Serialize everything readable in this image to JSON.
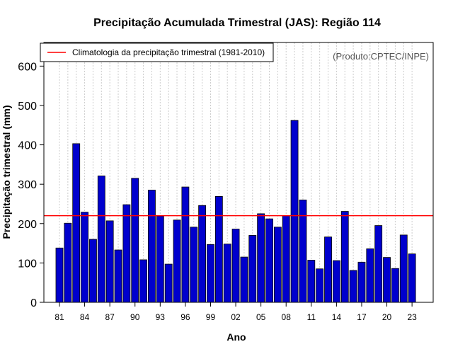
{
  "chart_data": {
    "type": "bar",
    "title": "Precipitação Acumulada Trimestral (JAS): Região 114",
    "xlabel": "Ano",
    "ylabel": "Precipitação trimestral (mm)",
    "credit": "(Produto:CPTEC/INPE)",
    "legend": {
      "label": "Climatologia da precipitação trimestral (1981-2010)",
      "position": "top-left"
    },
    "climatology": 220,
    "ylim": [
      0,
      660
    ],
    "yticks": [
      0,
      100,
      200,
      300,
      400,
      500,
      600
    ],
    "xtick_labels": [
      "81",
      "84",
      "87",
      "90",
      "93",
      "96",
      "99",
      "02",
      "05",
      "08",
      "11",
      "14",
      "17",
      "20",
      "23"
    ],
    "categories": [
      "1981",
      "1982",
      "1983",
      "1984",
      "1985",
      "1986",
      "1987",
      "1988",
      "1989",
      "1990",
      "1991",
      "1992",
      "1993",
      "1994",
      "1995",
      "1996",
      "1997",
      "1998",
      "1999",
      "2000",
      "2001",
      "2002",
      "2003",
      "2004",
      "2005",
      "2006",
      "2007",
      "2008",
      "2009",
      "2010",
      "2011",
      "2012",
      "2013",
      "2014",
      "2015",
      "2016",
      "2017",
      "2018",
      "2019",
      "2020",
      "2021",
      "2022",
      "2023"
    ],
    "values": [
      138,
      201,
      403,
      229,
      160,
      321,
      207,
      133,
      248,
      315,
      108,
      285,
      219,
      97,
      209,
      293,
      191,
      246,
      147,
      269,
      148,
      186,
      115,
      170,
      225,
      212,
      191,
      220,
      462,
      260,
      107,
      85,
      166,
      106,
      231,
      81,
      102,
      136,
      195,
      114,
      86,
      171,
      123
    ],
    "colors": {
      "bar": "#0000CD",
      "bar_edge": "#000000",
      "climatology_line": "#FF0000",
      "grid": "#CCCCCC"
    }
  }
}
